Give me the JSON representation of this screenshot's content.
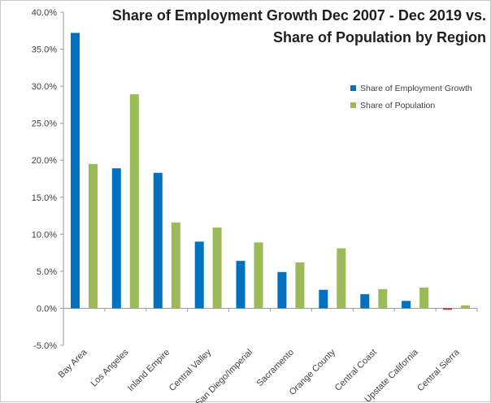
{
  "chart_data": {
    "type": "bar",
    "title_lines": [
      "Share of Employment Growth Dec 2007 - Dec 2019 vs.",
      "Share of Population by Region"
    ],
    "categories": [
      "Bay Area",
      "Los Angeles",
      "Inland Empire",
      "Central Valley",
      "San Diego/Imperial",
      "Sacramento",
      "Orange County",
      "Central Coast",
      "Upstate California",
      "Central Sierra"
    ],
    "series": [
      {
        "name": "Share of Employment Growth",
        "color": "#0070C0",
        "values": [
          37.2,
          18.9,
          18.3,
          9.0,
          6.4,
          4.9,
          2.5,
          1.9,
          1.0,
          -0.2
        ]
      },
      {
        "name": "Share of Population",
        "color": "#9BBB59",
        "values": [
          19.5,
          28.9,
          11.6,
          10.9,
          8.9,
          6.2,
          8.1,
          2.6,
          2.8,
          0.4
        ]
      }
    ],
    "negative_color": "#E0242C",
    "ylim": [
      -5,
      40
    ],
    "yticks": [
      -5,
      0,
      5,
      10,
      15,
      20,
      25,
      30,
      35,
      40
    ],
    "ytick_labels": [
      "-5.0%",
      "0.0%",
      "5.0%",
      "10.0%",
      "15.0%",
      "20.0%",
      "25.0%",
      "30.0%",
      "35.0%",
      "40.0%"
    ],
    "xlabel": "",
    "ylabel": "",
    "legend_position": "top-right",
    "grid": false
  }
}
